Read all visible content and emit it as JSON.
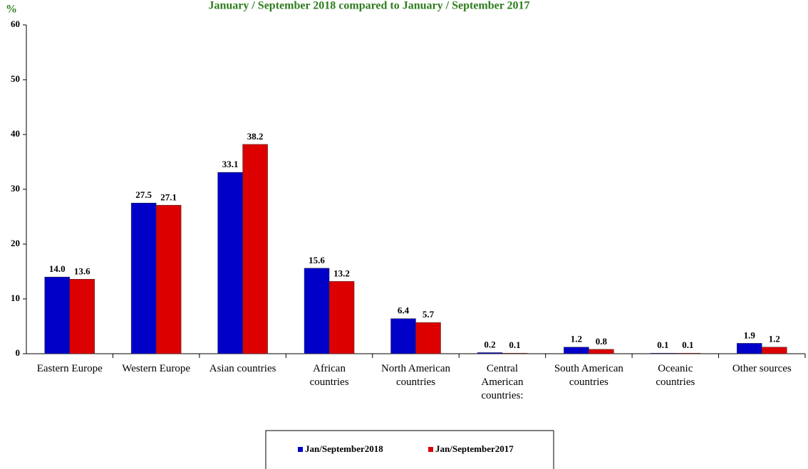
{
  "chart_data": {
    "type": "bar",
    "title": "January / September  2018 compared to January / September  2017",
    "y_label": "%",
    "categories": [
      "Eastern Europe",
      "Western Europe",
      "Asian countries",
      "African\ncountries",
      "North American\ncountries",
      "Central\nAmerican\ncountries:",
      "South American\ncountries",
      "Oceanic\ncountries",
      "Other sources"
    ],
    "series": [
      {
        "name": "Jan/September2018",
        "color": "#0000c8",
        "values": [
          14.0,
          27.5,
          33.1,
          15.6,
          6.4,
          0.2,
          1.2,
          0.1,
          1.9
        ],
        "value_labels": [
          "14.0",
          "27.5",
          "33.1",
          "15.6",
          "6.4",
          "0.2",
          "1.2",
          "0.1",
          "1.9"
        ]
      },
      {
        "name": "Jan/September2017",
        "color": "#dc0000",
        "values": [
          13.6,
          27.1,
          38.2,
          13.2,
          5.7,
          0.1,
          0.8,
          0.1,
          1.2
        ],
        "value_labels": [
          "13.6",
          "27.1",
          "38.2",
          "13.2",
          "5.7",
          "0.1",
          "0.8",
          "0.1",
          "1.2"
        ]
      }
    ],
    "ylim": [
      0,
      60
    ],
    "yticks": [
      0,
      10,
      20,
      30,
      40,
      50,
      60
    ],
    "grid": false,
    "legend": "bottom"
  }
}
